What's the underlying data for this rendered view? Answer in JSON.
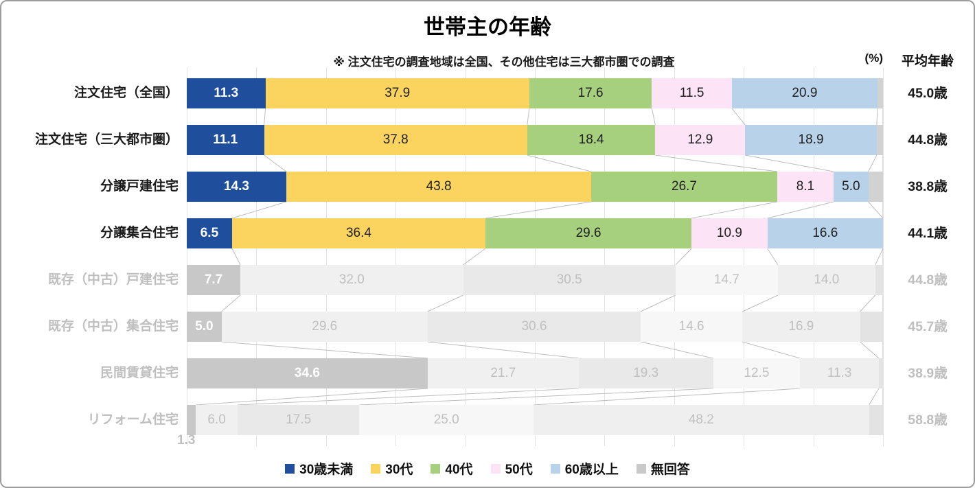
{
  "title": "世帯主の年齢",
  "subtitle": "※ 注文住宅の調査地域は全国、その他住宅は三大都市圏での調査",
  "unit_label": "(%)",
  "avg_header": "平均年齢",
  "legend": [
    {
      "label": "30歳未満",
      "color": "#1F4E9D"
    },
    {
      "label": "30代",
      "color": "#FBD45F"
    },
    {
      "label": "40代",
      "color": "#A6CF7E"
    },
    {
      "label": "50代",
      "color": "#FCE4F6"
    },
    {
      "label": "60歳以上",
      "color": "#B8D2EA"
    },
    {
      "label": "無回答",
      "color": "#C9C9C9"
    }
  ],
  "colors": {
    "active": [
      "#1F4E9D",
      "#FBD45F",
      "#A6CF7E",
      "#FCE4F6",
      "#B8D2EA",
      "#D2D2D2"
    ],
    "inactive": [
      "#C8C8C8",
      "#F0F0F0",
      "#E9E9E9",
      "#F7F7F7",
      "#EFEFEF",
      "#E3E3E3"
    ],
    "grid": "#E3E3E3",
    "connector": "#BDBDBD"
  },
  "chart_data": {
    "type": "bar",
    "orientation": "horizontal-stacked",
    "x_axis": {
      "min": 0,
      "max": 100,
      "gridline_step": 10
    },
    "series_names": [
      "30歳未満",
      "30代",
      "40代",
      "50代",
      "60歳以上",
      "無回答"
    ],
    "note": "最終セグメント(無回答)は 100−合計 の残余で、ラベル非表示",
    "rows": [
      {
        "label": "注文住宅（全国）",
        "active": true,
        "values": [
          11.3,
          37.9,
          17.6,
          11.5,
          20.9
        ],
        "avg": "45.0歳"
      },
      {
        "label": "注文住宅（三大都市圏）",
        "active": true,
        "values": [
          11.1,
          37.8,
          18.4,
          12.9,
          18.9
        ],
        "avg": "44.8歳"
      },
      {
        "label": "分譲戸建住宅",
        "active": true,
        "values": [
          14.3,
          43.8,
          26.7,
          8.1,
          5.0
        ],
        "avg": "38.8歳"
      },
      {
        "label": "分譲集合住宅",
        "active": true,
        "values": [
          6.5,
          36.4,
          29.6,
          10.9,
          16.6
        ],
        "avg": "44.1歳"
      },
      {
        "label": "既存（中古）戸建住宅",
        "active": false,
        "values": [
          7.7,
          32.0,
          30.5,
          14.7,
          14.0
        ],
        "avg": "44.8歳"
      },
      {
        "label": "既存（中古）集合住宅",
        "active": false,
        "values": [
          5.0,
          29.6,
          30.6,
          14.6,
          16.9
        ],
        "avg": "45.7歳"
      },
      {
        "label": "民間賃貸住宅",
        "active": false,
        "values": [
          34.6,
          21.7,
          19.3,
          12.5,
          11.3
        ],
        "avg": "38.9歳"
      },
      {
        "label": "リフォーム住宅",
        "active": false,
        "values": [
          1.3,
          6.0,
          17.5,
          25.0,
          48.2
        ],
        "avg": "58.8歳",
        "first_label_outside": true
      }
    ]
  }
}
